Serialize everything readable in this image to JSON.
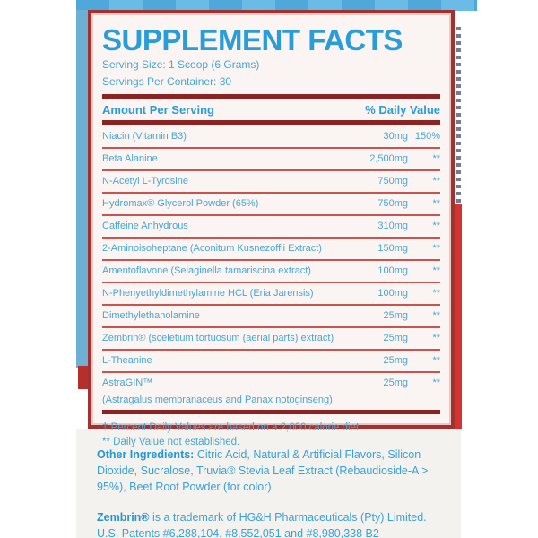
{
  "panel": {
    "title": "SUPPLEMENT FACTS",
    "serving_size": "Serving Size: 1 Scoop (6 Grams)",
    "servings_per_container": "Servings Per Container: 30",
    "header": {
      "amount_label": "Amount Per Serving",
      "dv_label": "% Daily Value"
    },
    "rows": [
      {
        "name": "Niacin (Vitamin B3)",
        "amount": "30mg",
        "dv": "150%"
      },
      {
        "name": "Beta Alanine",
        "amount": "2,500mg",
        "dv": "**"
      },
      {
        "name": "N-Acetyl L-Tyrosine",
        "amount": "750mg",
        "dv": "**"
      },
      {
        "name": "Hydromax® Glycerol Powder (65%)",
        "amount": "750mg",
        "dv": "**"
      },
      {
        "name": "Caffeine Anhydrous",
        "amount": "310mg",
        "dv": "**"
      },
      {
        "name": "2-Aminoisoheptane (Aconitum Kusnezoffii Extract)",
        "amount": "150mg",
        "dv": "**"
      },
      {
        "name": "Amentoflavone (Selaginella tamariscina extract)",
        "amount": "100mg",
        "dv": "**"
      },
      {
        "name": "N-Phenyethyldimethylamine HCL (Eria Jarensis)",
        "amount": "100mg",
        "dv": "**"
      },
      {
        "name": "Dimethylethanolamine",
        "amount": "25mg",
        "dv": "**"
      },
      {
        "name": "Zembrin® (sceletium tortuosum (aerial parts) extract)",
        "amount": "25mg",
        "dv": "**"
      },
      {
        "name": "L-Theanine",
        "amount": "25mg",
        "dv": "**"
      },
      {
        "name": "AstraGIN™",
        "name_line2": "(Astragalus membranaceus and Panax notoginseng)",
        "amount": "25mg",
        "dv": "**"
      }
    ],
    "footnotes": {
      "daily_values": "† Percent Daily Values are based on a 2,000 calorie diet",
      "not_established": "** Daily Value not established."
    }
  },
  "other_ingredients": {
    "label": "Other Ingredients:",
    "text": " Citric Acid, Natural & Artificial Flavors, Silicon Dioxide, Sucralose, Truvia® Stevia Leaf Extract (Rebaudioside-A > 95%), Beet Root Powder (for color)"
  },
  "trademark": {
    "label": "Zembrin®",
    "text": " is a trademark of HG&H Pharmaceuticals (Pty) Limited. U.S. Patents #6,288,104, #8,552,051 and #8,980,338 B2"
  },
  "colors": {
    "blue_text": "#3fa3d6",
    "title_blue": "#2a9cd8",
    "panel_bg": "#faf4f2",
    "border_red": "#a23230",
    "divider_red": "#8a2321",
    "separator_red": "#c9534e",
    "accent_bar_red": "#d63330",
    "left_strip_blue": "#6db0d4"
  }
}
